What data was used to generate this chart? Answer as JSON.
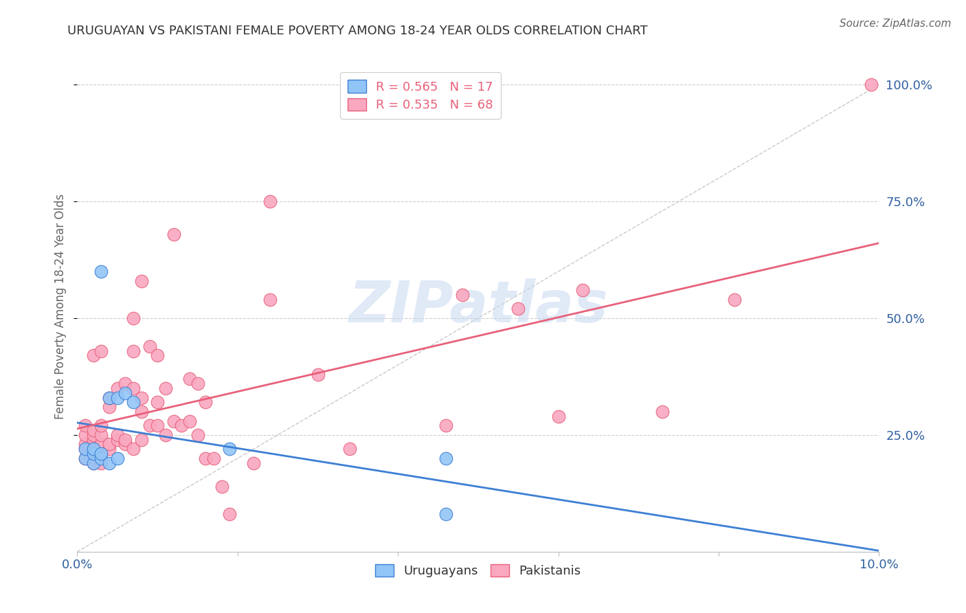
{
  "title": "URUGUAYAN VS PAKISTANI FEMALE POVERTY AMONG 18-24 YEAR OLDS CORRELATION CHART",
  "source": "Source: ZipAtlas.com",
  "ylabel": "Female Poverty Among 18-24 Year Olds",
  "xlim": [
    0.0,
    0.1
  ],
  "ylim": [
    0.0,
    1.05
  ],
  "xticks": [
    0.0,
    0.02,
    0.04,
    0.06,
    0.08,
    0.1
  ],
  "xticklabels": [
    "0.0%",
    "",
    "",
    "",
    "",
    "10.0%"
  ],
  "ytick_positions": [
    0.25,
    0.5,
    0.75,
    1.0
  ],
  "yticklabels": [
    "25.0%",
    "50.0%",
    "75.0%",
    "100.0%"
  ],
  "uruguayan_R": 0.565,
  "uruguayan_N": 17,
  "pakistani_R": 0.535,
  "pakistani_N": 68,
  "uruguayan_color": "#92C5F7",
  "pakistani_color": "#F9A8C0",
  "uruguayan_line_color": "#3D7FD4",
  "pakistani_line_color": "#E8607A",
  "diagonal_color": "#BBBBBB",
  "watermark_text": "ZIPatlas",
  "background_color": "#FFFFFF",
  "uruguayan_x": [
    0.001,
    0.001,
    0.002,
    0.002,
    0.002,
    0.003,
    0.003,
    0.003,
    0.004,
    0.004,
    0.005,
    0.005,
    0.006,
    0.007,
    0.019,
    0.046,
    0.046
  ],
  "uruguayan_y": [
    0.2,
    0.22,
    0.19,
    0.21,
    0.22,
    0.2,
    0.21,
    0.6,
    0.19,
    0.33,
    0.2,
    0.33,
    0.34,
    0.32,
    0.22,
    0.08,
    0.2
  ],
  "pakistani_x": [
    0.001,
    0.001,
    0.001,
    0.001,
    0.001,
    0.002,
    0.002,
    0.002,
    0.002,
    0.002,
    0.002,
    0.002,
    0.003,
    0.003,
    0.003,
    0.003,
    0.003,
    0.003,
    0.004,
    0.004,
    0.004,
    0.004,
    0.005,
    0.005,
    0.005,
    0.006,
    0.006,
    0.006,
    0.007,
    0.007,
    0.007,
    0.007,
    0.008,
    0.008,
    0.008,
    0.008,
    0.009,
    0.009,
    0.01,
    0.01,
    0.01,
    0.011,
    0.011,
    0.012,
    0.012,
    0.013,
    0.014,
    0.014,
    0.015,
    0.015,
    0.016,
    0.016,
    0.017,
    0.018,
    0.019,
    0.022,
    0.024,
    0.024,
    0.03,
    0.034,
    0.046,
    0.048,
    0.055,
    0.06,
    0.063,
    0.073,
    0.082,
    0.099
  ],
  "pakistani_y": [
    0.2,
    0.22,
    0.23,
    0.25,
    0.27,
    0.19,
    0.21,
    0.22,
    0.24,
    0.25,
    0.26,
    0.42,
    0.19,
    0.21,
    0.23,
    0.25,
    0.27,
    0.43,
    0.22,
    0.23,
    0.31,
    0.33,
    0.24,
    0.25,
    0.35,
    0.23,
    0.24,
    0.36,
    0.22,
    0.35,
    0.43,
    0.5,
    0.24,
    0.3,
    0.33,
    0.58,
    0.27,
    0.44,
    0.27,
    0.32,
    0.42,
    0.25,
    0.35,
    0.28,
    0.68,
    0.27,
    0.28,
    0.37,
    0.25,
    0.36,
    0.2,
    0.32,
    0.2,
    0.14,
    0.08,
    0.19,
    0.54,
    0.75,
    0.38,
    0.22,
    0.27,
    0.55,
    0.52,
    0.29,
    0.56,
    0.3,
    0.54,
    1.0
  ],
  "title_fontsize": 13,
  "tick_fontsize": 13,
  "legend_fontsize": 13,
  "ylabel_fontsize": 12,
  "source_fontsize": 11,
  "watermark_fontsize": 60,
  "scatter_size": 180,
  "line_width": 2.0
}
